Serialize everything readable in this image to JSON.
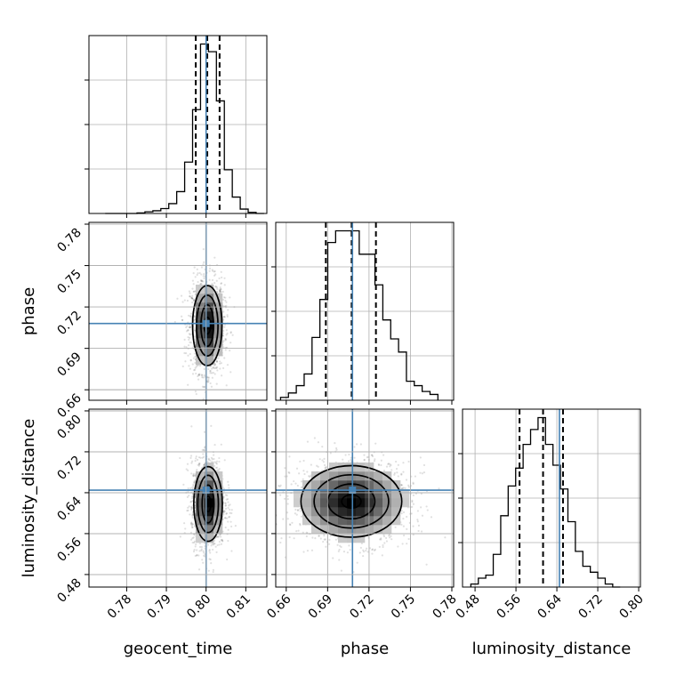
{
  "chart_data": {
    "type": "corner",
    "parameters": [
      "geocent_time",
      "phase",
      "luminosity_distance"
    ],
    "truths": {
      "geocent_time": 0.8,
      "phase": 0.708,
      "luminosity_distance": 0.645
    },
    "ranges": {
      "geocent_time": [
        0.7705,
        0.8153
      ],
      "phase": [
        0.6524,
        0.7813
      ],
      "luminosity_distance": [
        0.4555,
        0.8034
      ]
    },
    "ticks": {
      "geocent_time": [
        "0.78",
        "0.79",
        "0.80",
        "0.81"
      ],
      "phase": [
        "0.66",
        "0.69",
        "0.72",
        "0.75",
        "0.78"
      ],
      "luminosity_distance": [
        "0.48",
        "0.56",
        "0.64",
        "0.72",
        "0.80"
      ]
    },
    "quantiles": {
      "geocent_time": [
        0.7974,
        0.8003,
        0.8034
      ],
      "phase": [
        0.6887,
        0.7074,
        0.725
      ],
      "luminosity_distance": [
        0.567,
        0.613,
        0.652
      ]
    },
    "histograms": {
      "geocent_time": {
        "edges": [
          0.7746,
          0.7766,
          0.7786,
          0.7806,
          0.7826,
          0.7846,
          0.7866,
          0.7886,
          0.7906,
          0.7926,
          0.7946,
          0.7966,
          0.7986,
          0.8006,
          0.8026,
          0.8046,
          0.8066,
          0.8086,
          0.8106,
          0.8126,
          0.8146
        ],
        "counts": [
          0,
          0,
          0,
          0,
          0.5,
          1.5,
          2.5,
          4.5,
          9,
          20,
          47,
          95,
          155,
          148,
          103,
          40,
          15,
          4,
          1,
          0
        ]
      },
      "phase": {
        "edges": [
          0.6559,
          0.6616,
          0.6673,
          0.673,
          0.6787,
          0.6844,
          0.6901,
          0.6958,
          0.7015,
          0.7072,
          0.7129,
          0.7186,
          0.7243,
          0.73,
          0.7357,
          0.7414,
          0.7471,
          0.7528,
          0.7585,
          0.7642,
          0.7699
        ],
        "counts": [
          2,
          5,
          10,
          18,
          43,
          69,
          108,
          116,
          116,
          116,
          100,
          100,
          79,
          55,
          42,
          33,
          13,
          10,
          6,
          4
        ]
      },
      "luminosity_distance": {
        "edges": [
          0.4718,
          0.4864,
          0.501,
          0.5156,
          0.5302,
          0.5448,
          0.5594,
          0.574,
          0.5886,
          0.6032,
          0.6178,
          0.6324,
          0.647,
          0.6616,
          0.6762,
          0.6908,
          0.7054,
          0.72,
          0.7346,
          0.7492,
          0.7638
        ],
        "counts": [
          1,
          3,
          4,
          11,
          24,
          34,
          40,
          48,
          53,
          57,
          48,
          41,
          33,
          22,
          12,
          7,
          5,
          3,
          1,
          0
        ]
      }
    },
    "contours_2d": {
      "phase_vs_geocent_time": {
        "center": [
          0.8003,
          0.7065
        ],
        "levels": [
          [
            0.0037,
            0.029
          ],
          [
            0.0027,
            0.022
          ],
          [
            0.0016,
            0.015
          ],
          [
            0.0008,
            0.006
          ]
        ]
      },
      "luminosity_distance_vs_geocent_time": {
        "center": [
          0.8005,
          0.618
        ],
        "levels": [
          [
            0.0036,
            0.073
          ],
          [
            0.0026,
            0.056
          ],
          [
            0.0015,
            0.037
          ],
          [
            0.0007,
            0.015
          ]
        ]
      },
      "luminosity_distance_vs_phase": {
        "center": [
          0.7072,
          0.623
        ],
        "levels": [
          [
            0.0365,
            0.07
          ],
          [
            0.027,
            0.052
          ],
          [
            0.017,
            0.034
          ],
          [
            0.007,
            0.013
          ]
        ]
      }
    },
    "grid": true,
    "xlabel": "",
    "ylabel": ""
  }
}
